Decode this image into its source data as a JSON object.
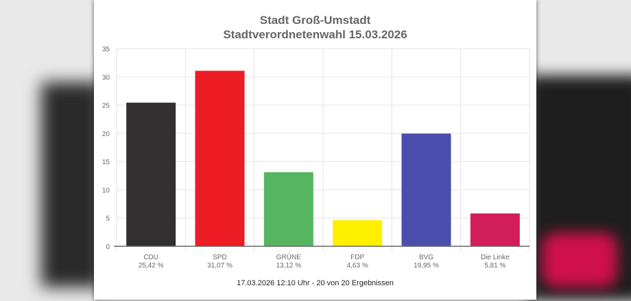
{
  "chart_data": {
    "type": "bar",
    "title": "Stadt Groß-Umstadt",
    "subtitle": "Stadtverordnetenwahl 15.03.2026",
    "categories": [
      "CDU",
      "SPD",
      "GRÜNE",
      "FDP",
      "BVG",
      "Die Linke"
    ],
    "values": [
      25.42,
      31.07,
      13.12,
      4.63,
      19.95,
      5.81
    ],
    "value_labels": [
      "25,42 %",
      "31,07 %",
      "13,12 %",
      "4,63 %",
      "19,95 %",
      "5,81 %"
    ],
    "colors": [
      "#333031",
      "#ee1c25",
      "#55b560",
      "#fff000",
      "#4a4fad",
      "#d21e5a"
    ],
    "ylim": [
      0,
      35
    ],
    "yticks": [
      0,
      5,
      10,
      15,
      20,
      25,
      30,
      35
    ],
    "grid": true,
    "xlabel": "",
    "ylabel": "",
    "footer": "17.03.2026 12:10 Uhr - 20 von 20 Ergebnissen"
  }
}
